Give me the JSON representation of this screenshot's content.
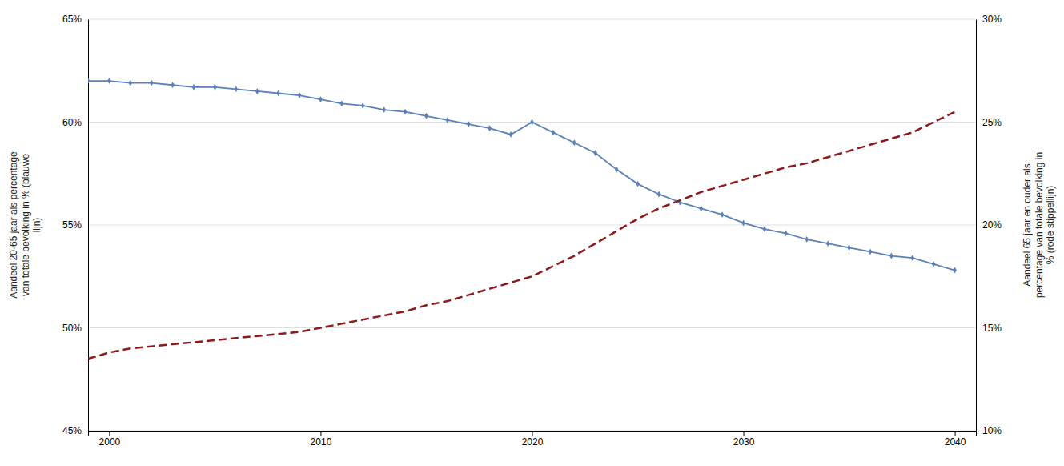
{
  "chart_data": {
    "type": "line",
    "x": [
      1999,
      2000,
      2001,
      2002,
      2003,
      2004,
      2005,
      2006,
      2007,
      2008,
      2009,
      2010,
      2011,
      2012,
      2013,
      2014,
      2015,
      2016,
      2017,
      2018,
      2019,
      2020,
      2021,
      2022,
      2023,
      2024,
      2025,
      2026,
      2027,
      2028,
      2029,
      2030,
      2031,
      2032,
      2033,
      2034,
      2035,
      2036,
      2037,
      2038,
      2039,
      2040
    ],
    "series": [
      {
        "color": "#5B80B8",
        "marker": "diamond",
        "line_style": "solid",
        "values": [
          0.62,
          0.62,
          0.619,
          0.619,
          0.618,
          0.617,
          0.617,
          0.616,
          0.615,
          0.614,
          0.613,
          0.611,
          0.609,
          0.608,
          0.606,
          0.605,
          0.603,
          0.601,
          0.599,
          0.597,
          0.594,
          0.6,
          0.595,
          0.59,
          0.585,
          0.577,
          0.57,
          0.565,
          0.561,
          0.558,
          0.555,
          0.551,
          0.548,
          0.546,
          0.543,
          0.541,
          0.539,
          0.537,
          0.535,
          0.534,
          0.531,
          0.528
        ]
      },
      {
        "color": "#8B1A1A",
        "line_style": "dashed",
        "axis": "y2",
        "values": [
          0.135,
          0.138,
          0.14,
          0.141,
          0.142,
          0.143,
          0.144,
          0.145,
          0.146,
          0.147,
          0.148,
          0.15,
          0.152,
          0.154,
          0.156,
          0.158,
          0.161,
          0.163,
          0.166,
          0.169,
          0.172,
          0.175,
          0.18,
          0.185,
          0.191,
          0.197,
          0.203,
          0.208,
          0.212,
          0.216,
          0.219,
          0.222,
          0.225,
          0.228,
          0.23,
          0.233,
          0.236,
          0.239,
          0.242,
          0.245,
          0.25,
          0.255
        ]
      }
    ],
    "xlim": [
      1999,
      2041
    ],
    "xticks": [
      2000,
      2010,
      2020,
      2030,
      2040
    ],
    "ylim": [
      0.45,
      0.65
    ],
    "yticks": [
      {
        "value": 0.45,
        "label": "45%"
      },
      {
        "value": 0.5,
        "label": "50%"
      },
      {
        "value": 0.55,
        "label": "55%"
      },
      {
        "value": 0.6,
        "label": "60%"
      },
      {
        "value": 0.65,
        "label": "65%"
      }
    ],
    "y2lim": [
      0.1,
      0.3
    ],
    "y2ticks": [
      {
        "value": 0.1,
        "label": "10%"
      },
      {
        "value": 0.15,
        "label": "15%"
      },
      {
        "value": 0.2,
        "label": "20%"
      },
      {
        "value": 0.25,
        "label": "25%"
      },
      {
        "value": 0.3,
        "label": "30%"
      }
    ],
    "ylabel": "Aandeel 20-65 jaar als percentage\nvan totale bevolking in % (blauwe\nlijn)",
    "y2label": "Aandeel 65 jaar en ouder als\npercentage van totale bevolking in\n% (rode stippellijn)",
    "grid": true
  }
}
